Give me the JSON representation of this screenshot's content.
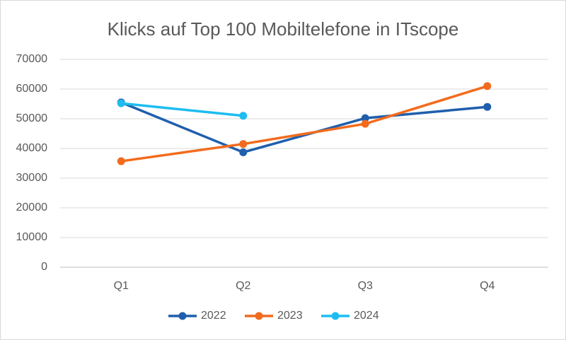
{
  "chart_data": {
    "type": "line",
    "title": "Klicks auf Top 100 Mobiltelefone in ITscope",
    "categories": [
      "Q1",
      "Q2",
      "Q3",
      "Q4"
    ],
    "series": [
      {
        "name": "2022",
        "color": "#1f5fad",
        "values": [
          55500,
          38700,
          50200,
          54000
        ]
      },
      {
        "name": "2023",
        "color": "#f26b1d",
        "values": [
          35700,
          41500,
          48300,
          61000
        ]
      },
      {
        "name": "2024",
        "color": "#1ebdf0",
        "values": [
          55200,
          51000,
          null,
          null
        ]
      }
    ],
    "ylim": [
      0,
      70000
    ],
    "yticks": [
      0,
      10000,
      20000,
      30000,
      40000,
      50000,
      60000,
      70000
    ],
    "grid": true,
    "legend": "bottom"
  }
}
